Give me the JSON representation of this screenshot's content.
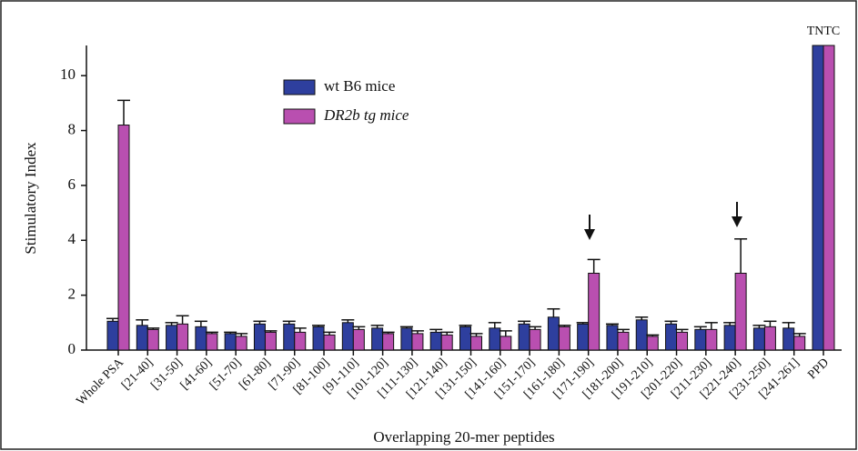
{
  "chart_data": {
    "type": "bar",
    "y_label": "Stimulatory Index",
    "x_label": "Overlapping 20-mer peptides",
    "categories": [
      "Whole PSA",
      "[21-40]",
      "[31-50]",
      "[41-60]",
      "[51-70]",
      "[61-80]",
      "[71-90]",
      "[81-100]",
      "[91-110]",
      "[101-120]",
      "[111-130]",
      "[121-140]",
      "[131-150]",
      "[141-160]",
      "[151-170]",
      "[161-180]",
      "[171-190]",
      "[181-200]",
      "[191-210]",
      "[201-220]",
      "[211-230]",
      "[221-240]",
      "[231-250]",
      "[241-261]",
      "PPD"
    ],
    "series": [
      {
        "name": "wt B6 mice",
        "color": "#2e3f9e",
        "values": [
          1.05,
          0.9,
          0.9,
          0.85,
          0.6,
          0.95,
          0.95,
          0.85,
          1.0,
          0.8,
          0.8,
          0.65,
          0.85,
          0.8,
          0.95,
          1.2,
          0.95,
          0.9,
          1.1,
          0.95,
          0.75,
          0.9,
          0.8,
          0.8,
          11.1
        ],
        "errors": [
          0.1,
          0.2,
          0.1,
          0.2,
          0.05,
          0.1,
          0.1,
          0.05,
          0.1,
          0.1,
          0.05,
          0.1,
          0.05,
          0.2,
          0.1,
          0.3,
          0.05,
          0.05,
          0.1,
          0.1,
          0.1,
          0.1,
          0.1,
          0.2,
          null
        ]
      },
      {
        "name": "DR2b tg mice",
        "color": "#b94fb0",
        "values": [
          8.2,
          0.75,
          0.95,
          0.6,
          0.5,
          0.65,
          0.65,
          0.55,
          0.75,
          0.6,
          0.6,
          0.55,
          0.5,
          0.5,
          0.75,
          0.85,
          2.8,
          0.65,
          0.5,
          0.65,
          0.75,
          2.8,
          0.85,
          0.5,
          11.1
        ],
        "errors": [
          0.9,
          0.05,
          0.3,
          0.05,
          0.1,
          0.05,
          0.15,
          0.1,
          0.1,
          0.05,
          0.1,
          0.1,
          0.1,
          0.2,
          0.1,
          0.05,
          0.5,
          0.1,
          0.05,
          0.1,
          0.25,
          1.25,
          0.2,
          0.1,
          null
        ]
      }
    ],
    "annotation": "TNTC",
    "ylim": [
      0,
      11.1
    ],
    "yticks": [
      0,
      2,
      4,
      6,
      8,
      10
    ]
  }
}
